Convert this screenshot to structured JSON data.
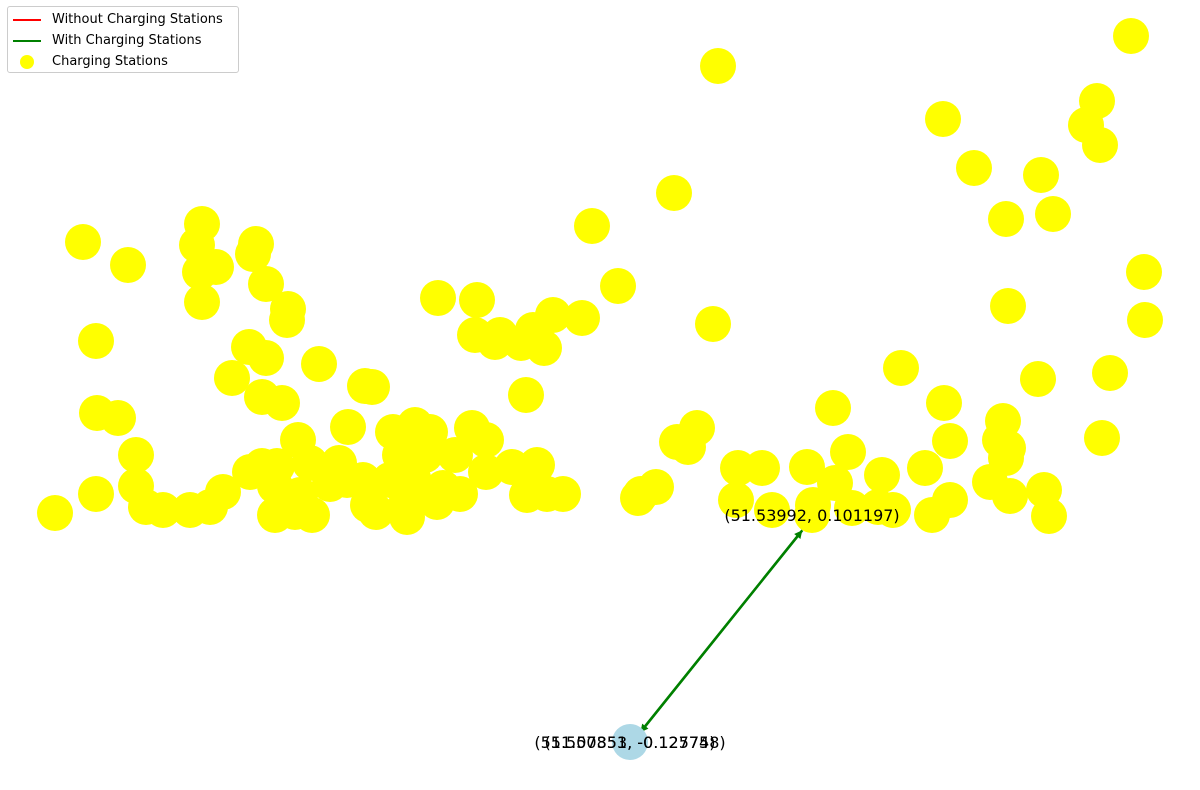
{
  "chart_data": {
    "type": "scatter",
    "axes_visible": false,
    "legend_placement": "top-left",
    "legend": [
      {
        "label": "Without Charging Stations",
        "color": "#ff0000",
        "kind": "line"
      },
      {
        "label": "With Charging Stations",
        "color": "#008000",
        "kind": "line"
      },
      {
        "label": "Charging Stations",
        "color": "#ffff00",
        "kind": "marker"
      }
    ],
    "station_color": "#ffff00",
    "start_color": "#add8e6",
    "route_color": "#008000",
    "start_labels": [
      "(51.507351, -0.127758)",
      "(51.50853, -0.12574)"
    ],
    "end_label": "(51.53992, 0.101197)",
    "stations": [
      [
        1131,
        36
      ],
      [
        718,
        66
      ],
      [
        1097,
        101
      ],
      [
        943,
        119
      ],
      [
        1086,
        125
      ],
      [
        1100,
        145
      ],
      [
        974,
        168
      ],
      [
        1041,
        175
      ],
      [
        674,
        193
      ],
      [
        1006,
        219
      ],
      [
        1053,
        214
      ],
      [
        202,
        224
      ],
      [
        592,
        226
      ],
      [
        83,
        242
      ],
      [
        197,
        245
      ],
      [
        256,
        244
      ],
      [
        253,
        254
      ],
      [
        128,
        265
      ],
      [
        200,
        272
      ],
      [
        216,
        267
      ],
      [
        266,
        284
      ],
      [
        1144,
        272
      ],
      [
        618,
        286
      ],
      [
        438,
        298
      ],
      [
        477,
        300
      ],
      [
        202,
        302
      ],
      [
        288,
        309
      ],
      [
        287,
        320
      ],
      [
        1008,
        306
      ],
      [
        553,
        315
      ],
      [
        582,
        318
      ],
      [
        1145,
        320
      ],
      [
        713,
        324
      ],
      [
        475,
        335
      ],
      [
        500,
        335
      ],
      [
        495,
        342
      ],
      [
        533,
        330
      ],
      [
        521,
        343
      ],
      [
        544,
        348
      ],
      [
        96,
        341
      ],
      [
        249,
        347
      ],
      [
        266,
        358
      ],
      [
        319,
        364
      ],
      [
        901,
        368
      ],
      [
        232,
        378
      ],
      [
        365,
        386
      ],
      [
        372,
        387
      ],
      [
        1110,
        373
      ],
      [
        1038,
        379
      ],
      [
        262,
        397
      ],
      [
        282,
        403
      ],
      [
        526,
        395
      ],
      [
        944,
        403
      ],
      [
        97,
        413
      ],
      [
        118,
        418
      ],
      [
        833,
        408
      ],
      [
        1003,
        421
      ],
      [
        298,
        440
      ],
      [
        348,
        427
      ],
      [
        393,
        432
      ],
      [
        415,
        425
      ],
      [
        430,
        432
      ],
      [
        472,
        428
      ],
      [
        486,
        440
      ],
      [
        677,
        442
      ],
      [
        688,
        447
      ],
      [
        697,
        428
      ],
      [
        848,
        452
      ],
      [
        950,
        441
      ],
      [
        1000,
        440
      ],
      [
        1008,
        448
      ],
      [
        1102,
        438
      ],
      [
        136,
        455
      ],
      [
        250,
        472
      ],
      [
        262,
        466
      ],
      [
        277,
        466
      ],
      [
        310,
        463
      ],
      [
        339,
        463
      ],
      [
        400,
        455
      ],
      [
        425,
        455
      ],
      [
        455,
        455
      ],
      [
        512,
        467
      ],
      [
        537,
        465
      ],
      [
        738,
        468
      ],
      [
        762,
        468
      ],
      [
        807,
        467
      ],
      [
        835,
        483
      ],
      [
        882,
        475
      ],
      [
        925,
        468
      ],
      [
        1006,
        458
      ],
      [
        136,
        486
      ],
      [
        96,
        494
      ],
      [
        223,
        492
      ],
      [
        275,
        486
      ],
      [
        300,
        495
      ],
      [
        330,
        484
      ],
      [
        363,
        480
      ],
      [
        390,
        480
      ],
      [
        413,
        478
      ],
      [
        443,
        488
      ],
      [
        486,
        472
      ],
      [
        527,
        495
      ],
      [
        547,
        494
      ],
      [
        563,
        494
      ],
      [
        656,
        487
      ],
      [
        641,
        494
      ],
      [
        638,
        498
      ],
      [
        990,
        482
      ],
      [
        1044,
        490
      ],
      [
        1010,
        496
      ],
      [
        146,
        507
      ],
      [
        163,
        510
      ],
      [
        190,
        510
      ],
      [
        210,
        507
      ],
      [
        275,
        515
      ],
      [
        295,
        512
      ],
      [
        312,
        515
      ],
      [
        368,
        505
      ],
      [
        376,
        512
      ],
      [
        407,
        517
      ],
      [
        437,
        502
      ],
      [
        460,
        494
      ],
      [
        736,
        500
      ],
      [
        772,
        510
      ],
      [
        813,
        505
      ],
      [
        852,
        508
      ],
      [
        878,
        507
      ],
      [
        893,
        510
      ],
      [
        932,
        515
      ],
      [
        950,
        500
      ],
      [
        1049,
        516
      ],
      [
        55,
        513
      ],
      [
        407,
        500
      ],
      [
        347,
        480
      ]
    ],
    "end_point": [
      812,
      515
    ],
    "start_point": [
      630,
      742
    ]
  }
}
